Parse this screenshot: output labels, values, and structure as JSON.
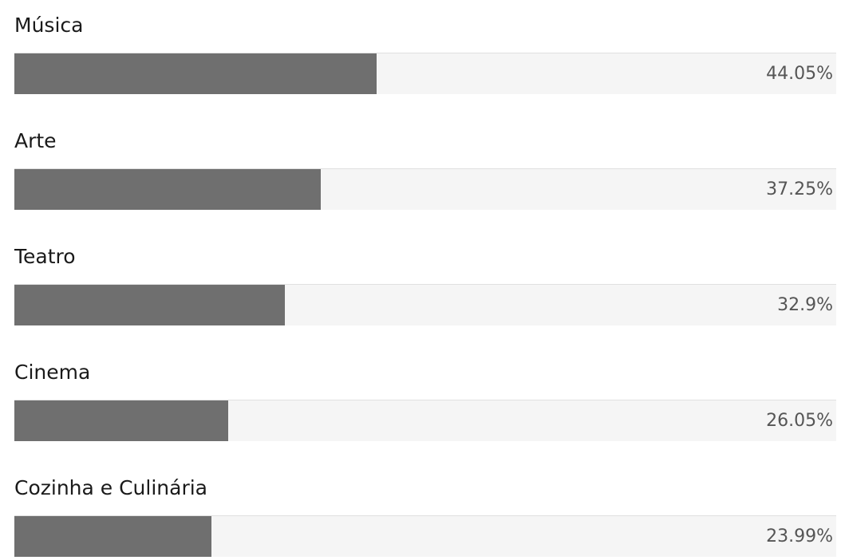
{
  "chart_data": {
    "type": "bar",
    "orientation": "horizontal",
    "categories": [
      "Música",
      "Arte",
      "Teatro",
      "Cinema",
      "Cozinha e Culinária"
    ],
    "values": [
      44.05,
      37.25,
      32.9,
      26.05,
      23.99
    ],
    "value_labels": [
      "44.05%",
      "37.25%",
      "32.9%",
      "26.05%",
      "23.99%"
    ],
    "unit": "%",
    "xlim": [
      0,
      100
    ],
    "grid": false,
    "legend": "none"
  },
  "colors": {
    "bar": "#6f6f6f",
    "track": "#f5f5f5",
    "label": "#1a1a1a",
    "value": "#555555"
  }
}
